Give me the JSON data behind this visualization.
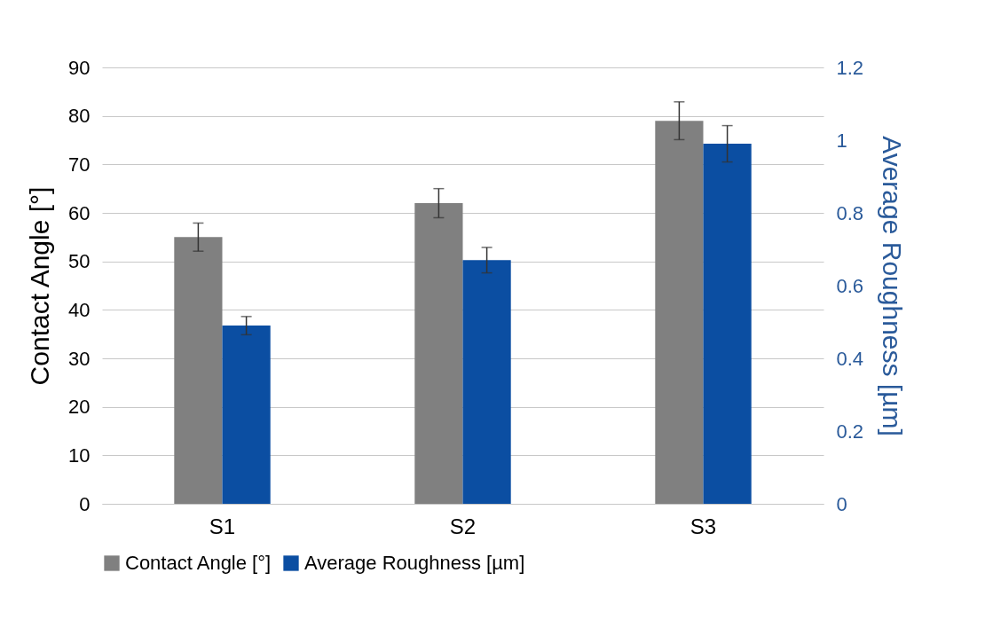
{
  "chart_data": {
    "type": "bar",
    "categories": [
      "S1",
      "S2",
      "S3"
    ],
    "ylabel": "Contact Angle [°]",
    "y2label": "Average Roughness [µm]",
    "ylim": [
      0,
      90
    ],
    "yticks": [
      0,
      10,
      20,
      30,
      40,
      50,
      60,
      70,
      80,
      90
    ],
    "y2lim": [
      0,
      1.2
    ],
    "y2ticks": [
      0,
      0.2,
      0.4,
      0.6,
      0.8,
      1,
      1.2
    ],
    "grid": "y",
    "legend": "bottom",
    "series": [
      {
        "name": "Contact Angle [°]",
        "color": "#808080",
        "values": [
          55,
          62,
          79
        ],
        "errors": [
          2.9,
          3,
          3.9
        ]
      },
      {
        "name": "Average Roughness [µm]",
        "color": "#0b4ea2",
        "axis": "y2",
        "values": [
          0.49,
          0.67,
          0.99
        ],
        "errors": [
          0.025,
          0.035,
          0.05
        ]
      }
    ]
  }
}
